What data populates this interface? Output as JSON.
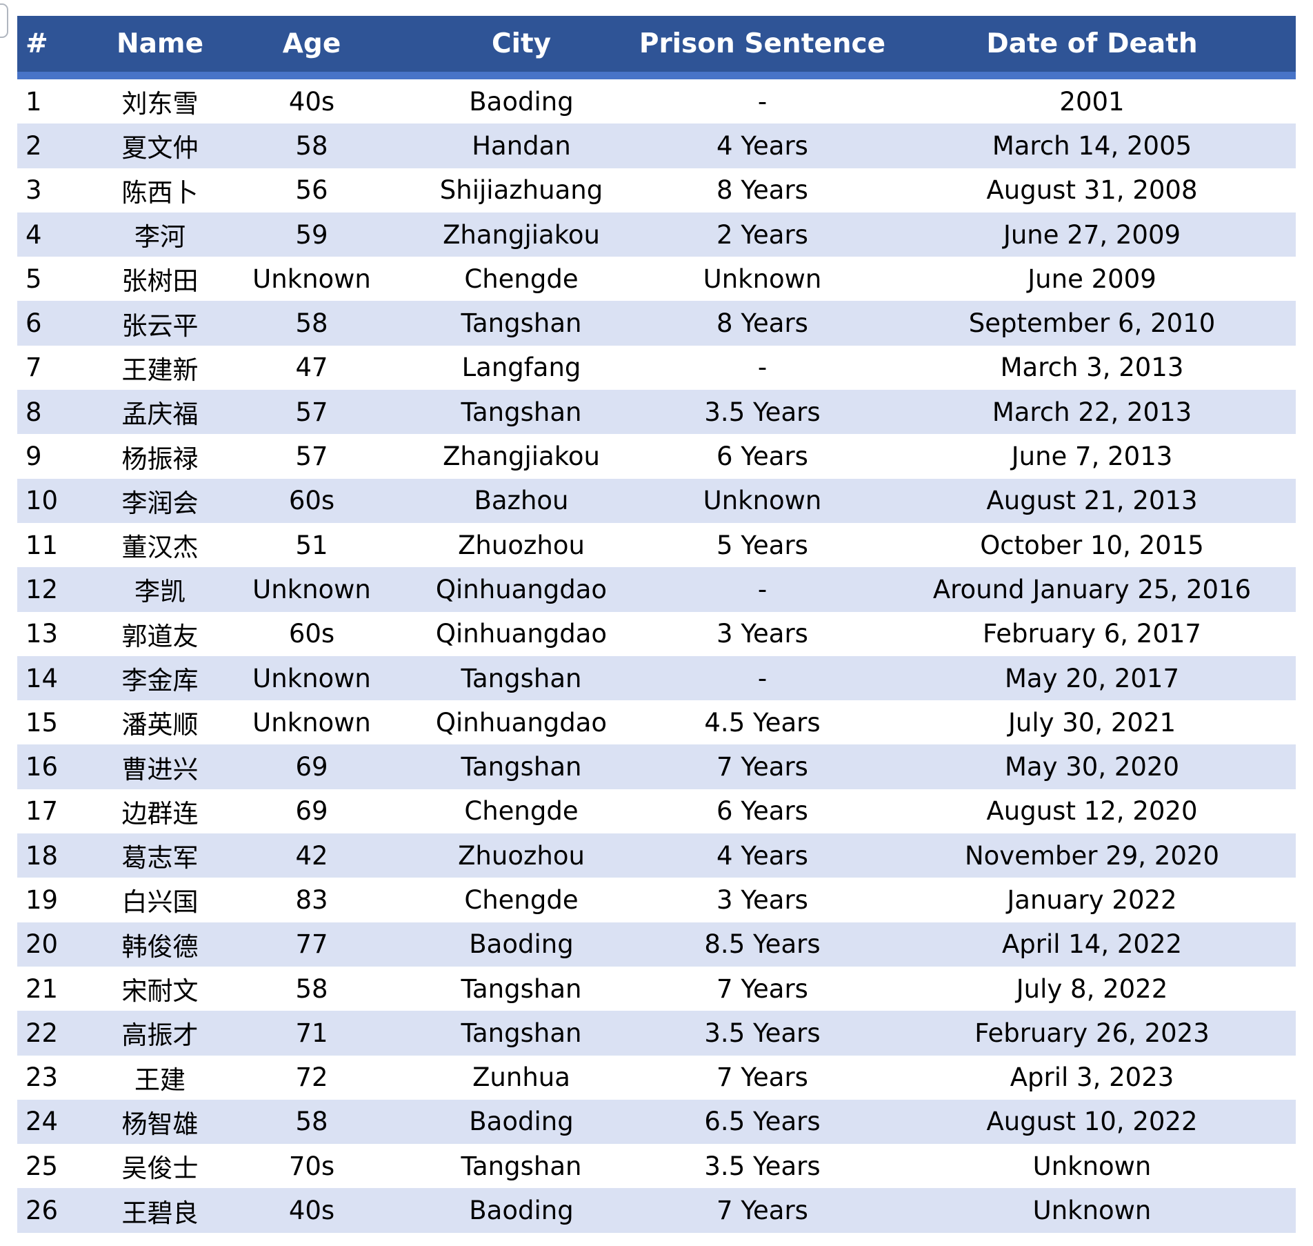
{
  "colors": {
    "header-bg": "#2F5496",
    "header-text": "#FFFFFF",
    "header-underline": "#4874C8",
    "stripe-bg": "#DAE1F3",
    "row-bg": "#FFFFFF",
    "text": "#000000"
  },
  "table": {
    "columns": [
      {
        "label": "#"
      },
      {
        "label": "Name"
      },
      {
        "label": "Age"
      },
      {
        "label": "City"
      },
      {
        "label": "Prison Sentence"
      },
      {
        "label": "Date of Death"
      }
    ],
    "rows": [
      [
        "1",
        "刘东雪",
        "40s",
        "Baoding",
        "-",
        "2001"
      ],
      [
        "2",
        "夏文仲",
        "58",
        "Handan",
        "4 Years",
        "March 14, 2005"
      ],
      [
        "3",
        "陈西卜",
        "56",
        "Shijiazhuang",
        "8 Years",
        "August 31, 2008"
      ],
      [
        "4",
        "李河",
        "59",
        "Zhangjiakou",
        "2 Years",
        "June 27, 2009"
      ],
      [
        "5",
        "张树田",
        "Unknown",
        "Chengde",
        "Unknown",
        "June 2009"
      ],
      [
        "6",
        "张云平",
        "58",
        "Tangshan",
        "8 Years",
        "September 6, 2010"
      ],
      [
        "7",
        "王建新",
        "47",
        "Langfang",
        "-",
        "March 3, 2013"
      ],
      [
        "8",
        "孟庆福",
        "57",
        "Tangshan",
        "3.5 Years",
        "March 22, 2013"
      ],
      [
        "9",
        "杨振禄",
        "57",
        "Zhangjiakou",
        "6 Years",
        "June 7, 2013"
      ],
      [
        "10",
        "李润会",
        "60s",
        "Bazhou",
        "Unknown",
        "August 21, 2013"
      ],
      [
        "11",
        "董汉杰",
        "51",
        "Zhuozhou",
        "5 Years",
        "October 10, 2015"
      ],
      [
        "12",
        "李凯",
        "Unknown",
        "Qinhuangdao",
        "-",
        "Around January 25, 2016"
      ],
      [
        "13",
        "郭道友",
        "60s",
        "Qinhuangdao",
        "3 Years",
        "February 6, 2017"
      ],
      [
        "14",
        "李金库",
        "Unknown",
        "Tangshan",
        "-",
        "May 20, 2017"
      ],
      [
        "15",
        "潘英顺",
        "Unknown",
        "Qinhuangdao",
        "4.5 Years",
        "July 30, 2021"
      ],
      [
        "16",
        "曹进兴",
        "69",
        "Tangshan",
        "7 Years",
        "May 30, 2020"
      ],
      [
        "17",
        "边群连",
        "69",
        "Chengde",
        "6 Years",
        "August 12, 2020"
      ],
      [
        "18",
        "葛志军",
        "42",
        "Zhuozhou",
        "4 Years",
        "November 29, 2020"
      ],
      [
        "19",
        "白兴国",
        "83",
        "Chengde",
        "3 Years",
        "January 2022"
      ],
      [
        "20",
        "韩俊德",
        "77",
        "Baoding",
        "8.5 Years",
        "April 14, 2022"
      ],
      [
        "21",
        "宋耐文",
        "58",
        "Tangshan",
        "7 Years",
        "July 8, 2022"
      ],
      [
        "22",
        "高振才",
        "71",
        "Tangshan",
        "3.5 Years",
        "February 26, 2023"
      ],
      [
        "23",
        "王建",
        "72",
        "Zunhua",
        "7 Years",
        "April 3, 2023"
      ],
      [
        "24",
        "杨智雄",
        "58",
        "Baoding",
        "6.5 Years",
        "August 10, 2022"
      ],
      [
        "25",
        "吴俊士",
        "70s",
        "Tangshan",
        "3.5 Years",
        "Unknown"
      ],
      [
        "26",
        "王碧良",
        "40s",
        "Baoding",
        "7 Years",
        "Unknown"
      ]
    ]
  }
}
